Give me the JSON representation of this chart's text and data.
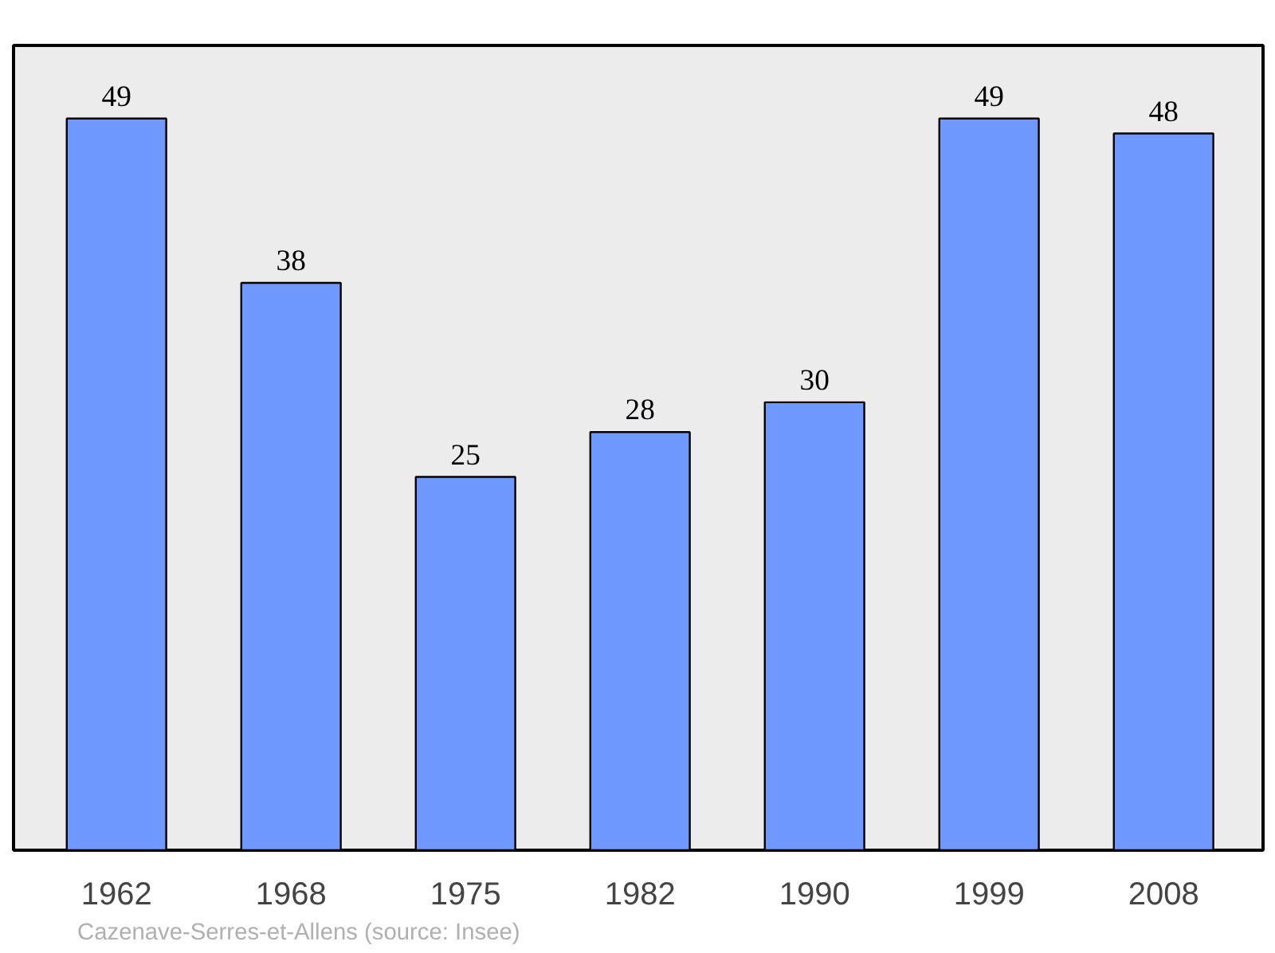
{
  "chart_data": {
    "type": "bar",
    "categories": [
      "1962",
      "1968",
      "1975",
      "1982",
      "1990",
      "1999",
      "2008"
    ],
    "values": [
      49,
      38,
      25,
      28,
      30,
      49,
      48
    ],
    "color": "#7099ff",
    "data_labels": true,
    "annotations": [
      "Cazenave-Serres-et-Allens    (source: Insee)"
    ]
  }
}
